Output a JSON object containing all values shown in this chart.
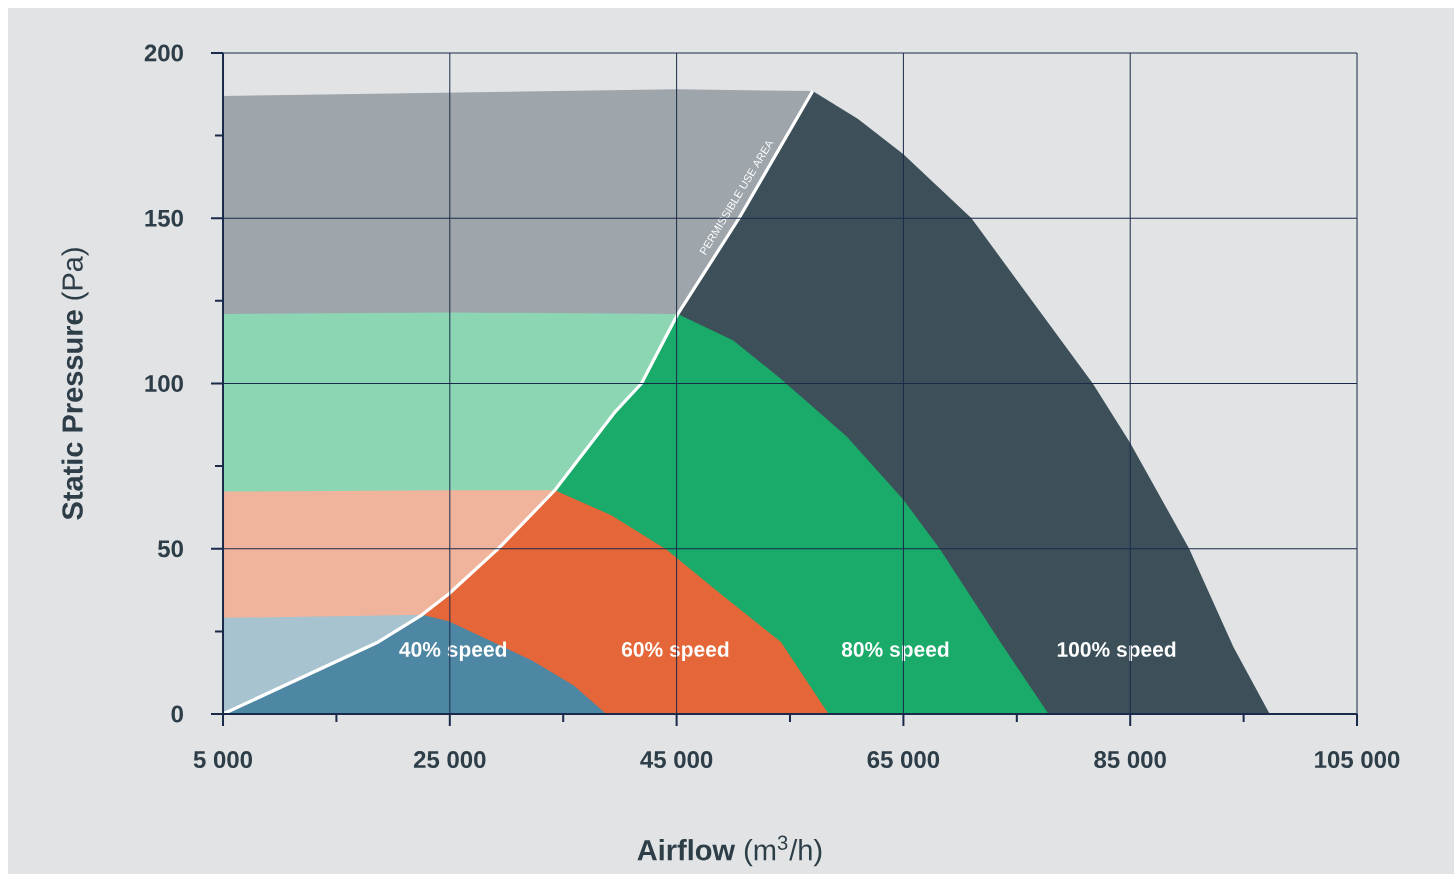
{
  "chart_data": {
    "type": "area",
    "xlabel": "**Airflow** (m$^{3}$/h)",
    "ylabel": "**Static Pressure** (Pa)",
    "xlim": [
      5000,
      105000
    ],
    "ylim": [
      0,
      200
    ],
    "xticks": [
      {
        "value": 5000,
        "label": "5 000"
      },
      {
        "value": 15000,
        "label": null
      },
      {
        "value": 25000,
        "label": "25 000"
      },
      {
        "value": 35000,
        "label": null
      },
      {
        "value": 45000,
        "label": "45 000"
      },
      {
        "value": 55000,
        "label": null
      },
      {
        "value": 65000,
        "label": "65 000"
      },
      {
        "value": 75000,
        "label": null
      },
      {
        "value": 85000,
        "label": "85 000"
      },
      {
        "value": 95000,
        "label": null
      },
      {
        "value": 105000,
        "label": "105 000"
      }
    ],
    "yticks": [
      0,
      {
        "value": 25,
        "label": null
      },
      50,
      {
        "value": 75,
        "label": null
      },
      100,
      {
        "value": 125,
        "label": null
      },
      150,
      {
        "value": 175,
        "label": null
      },
      200
    ],
    "grid": true,
    "series": [
      {
        "color": "#9ea5ab",
        "x": [
          5000,
          25000,
          45000,
          57000
        ],
        "values": [
          187,
          188,
          189,
          188.5
        ]
      },
      {
        "name": "100% speed",
        "color": "#3d5059",
        "x": [
          45100,
          50500,
          57000,
          61000,
          65000,
          71000,
          81700,
          85000,
          90200,
          94100,
          97300
        ],
        "values": [
          121,
          150,
          188.5,
          180,
          169.4,
          150,
          100,
          82,
          50,
          20.3,
          0
        ]
      },
      {
        "color": "#8dd6b4",
        "x": [
          5000,
          25000,
          45100
        ],
        "values": [
          121,
          121.5,
          121
        ]
      },
      {
        "name": "80% speed",
        "color": "#1aaa69",
        "x": [
          34260,
          39600,
          41900,
          45100,
          50000,
          54100,
          60000,
          65000,
          68200,
          73600,
          77800
        ],
        "values": [
          67.7,
          91.5,
          100,
          121,
          113,
          101.7,
          84,
          64.8,
          50,
          21.5,
          0
        ]
      },
      {
        "color": "#f0b39b",
        "x": [
          5000,
          25000,
          34260
        ],
        "values": [
          67.3,
          67.7,
          67.7
        ]
      },
      {
        "name": "60% speed",
        "color": "#e56638",
        "x": [
          22550,
          24900,
          29300,
          34260,
          39200,
          44100,
          49000,
          54200,
          58400
        ],
        "values": [
          30,
          36.3,
          50.1,
          67.7,
          60.2,
          49.8,
          36,
          21.8,
          0
        ]
      },
      {
        "color": "#a7c3cf",
        "x": [
          5000,
          15000,
          22550
        ],
        "values": [
          29.1,
          29.6,
          30
        ]
      },
      {
        "name": "40% speed",
        "color": "#4d87a3",
        "x": [
          5000,
          18700,
          22550,
          24900,
          32250,
          35900,
          38800
        ],
        "values": [
          0,
          21.8,
          30,
          28.1,
          16.2,
          8.7,
          0
        ]
      },
      {
        "type": "line",
        "name": "PERMISSIBLE USE AREA",
        "color": "#ffffff",
        "x": [
          5000,
          18700,
          22550,
          24900,
          29300,
          34260,
          39600,
          41900,
          45100,
          50500,
          57000
        ],
        "values": [
          0,
          21.8,
          30,
          36.3,
          50.1,
          67.7,
          91.5,
          100,
          121,
          150,
          188.5
        ]
      }
    ]
  }
}
